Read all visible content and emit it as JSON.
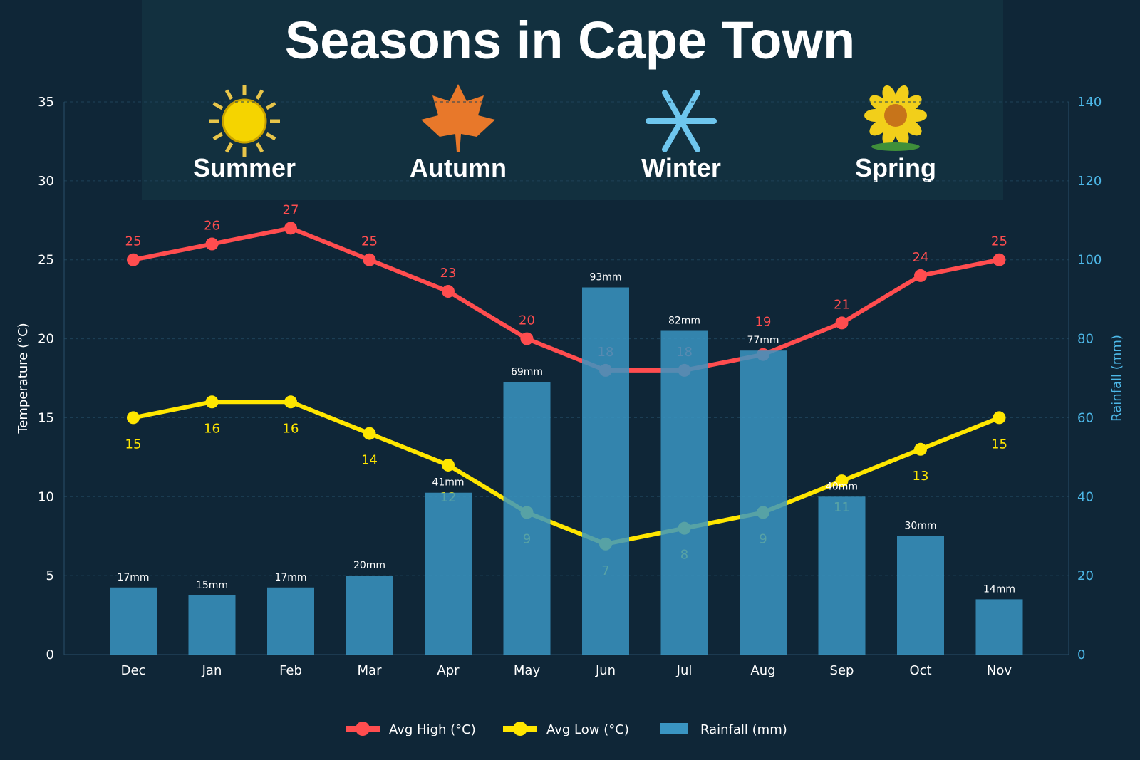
{
  "chart_data": {
    "type": "bar+line",
    "title": "Seasons in Cape Town",
    "seasons": [
      {
        "label": "Summer",
        "icon": "sun-icon"
      },
      {
        "label": "Autumn",
        "icon": "maple-leaf-icon"
      },
      {
        "label": "Winter",
        "icon": "snowflake-icon"
      },
      {
        "label": "Spring",
        "icon": "sunflower-icon"
      }
    ],
    "categories": [
      "Dec",
      "Jan",
      "Feb",
      "Mar",
      "Apr",
      "May",
      "Jun",
      "Jul",
      "Aug",
      "Sep",
      "Oct",
      "Nov"
    ],
    "series": [
      {
        "name": "Avg High (°C)",
        "type": "line",
        "axis": "left",
        "color": "#ff4d4f",
        "values": [
          25,
          26,
          27,
          25,
          23,
          20,
          18,
          18,
          19,
          21,
          24,
          25
        ]
      },
      {
        "name": "Avg Low (°C)",
        "type": "line",
        "axis": "left",
        "color": "#ffe600",
        "values": [
          15,
          16,
          16,
          14,
          12,
          9,
          7,
          8,
          9,
          11,
          13,
          15
        ]
      },
      {
        "name": "Rainfall (mm)",
        "type": "bar",
        "axis": "right",
        "color": "#3a95c2",
        "values": [
          17,
          15,
          17,
          20,
          41,
          69,
          93,
          82,
          77,
          40,
          30,
          14
        ],
        "label_suffix": "mm"
      }
    ],
    "ylabel": "Temperature (°C)",
    "y2label": "Rainfall (mm)",
    "ylim": [
      0,
      35
    ],
    "y2lim": [
      0,
      140
    ],
    "yticks": [
      0,
      5,
      10,
      15,
      20,
      25,
      30,
      35
    ],
    "y2ticks": [
      0,
      20,
      40,
      60,
      80,
      100,
      120,
      140
    ],
    "grid": true,
    "legend": "bottom-center"
  }
}
